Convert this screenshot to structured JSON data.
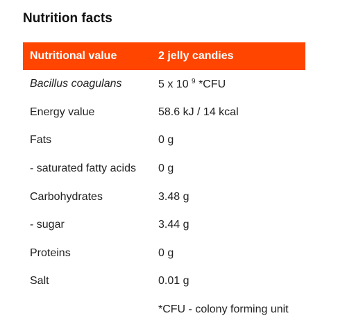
{
  "title": "Nutrition facts",
  "header": {
    "col1": "Nutritional value",
    "col2": "2 jelly candies"
  },
  "colors": {
    "header_bg": "#ff4500",
    "header_text": "#ffffff"
  },
  "bacillus": {
    "label": "Bacillus coagulans",
    "value_base": "5 x 10",
    "value_exp": "9",
    "value_unit": "*CFU"
  },
  "rows": [
    {
      "label": "Energy value",
      "value": "58.6 kJ / 14 kcal"
    },
    {
      "label": "Fats",
      "value": "0 g"
    },
    {
      "label": "- saturated fatty acids",
      "value": "0 g"
    },
    {
      "label": "Carbohydrates",
      "value": "3.48 g"
    },
    {
      "label": "- sugar",
      "value": "3.44 g"
    },
    {
      "label": "Proteins",
      "value": "0 g"
    },
    {
      "label": "Salt",
      "value": "0.01 g"
    }
  ],
  "footnote": "*CFU - colony forming unit"
}
